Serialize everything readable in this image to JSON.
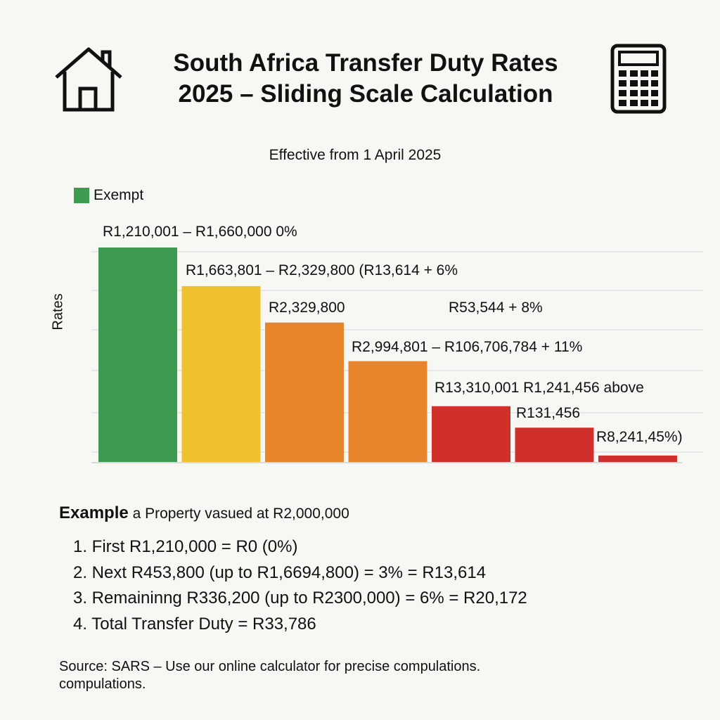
{
  "header": {
    "title_line1": "South Africa Transfer Duty Rates",
    "title_line2": "2025 – Sliding Scale Calculation",
    "subtitle": "Effective from 1 April 2025",
    "icons": [
      "house-icon",
      "calculator-icon"
    ]
  },
  "chart_data": {
    "type": "bar",
    "title": "South Africa Transfer Duty Rates 2025 – Sliding Scale Calculation",
    "subtitle": "Effective from 1 April 2025",
    "ylabel": "Rates",
    "xlabel": "",
    "legend": [
      {
        "label": "Exempt",
        "color": "#3d9a4e"
      }
    ],
    "legend_placement": "top-left",
    "grid": true,
    "ylim": [
      0,
      100
    ],
    "categories": [
      "R1,210,001 – R1,660,000 0%",
      "R1,663,801 – R2,329,800 (R13,614 + 6%",
      "R2,329,800",
      "R2,994,801 – R106,706,784 + 11%",
      "R13,310,001 R1,241,456 above",
      "R131,456",
      "R8,241,45%)"
    ],
    "annotations": [
      "R53,544 + 8%"
    ],
    "values": [
      100,
      82,
      65,
      47,
      26,
      16,
      3
    ],
    "colors": [
      "#3d9a4e",
      "#f0c030",
      "#e8852c",
      "#e8852c",
      "#d0302c",
      "#d0302c",
      "#d0302c"
    ]
  },
  "example": {
    "heading": "Example",
    "intro": "a Property vasued at R2,000,000",
    "steps": [
      "1. First R1,210,000 = R0 (0%)",
      "2. Next R453,800 (up to R1,6694,800) =  3% = R13,614",
      "3. Remaininng R336,200 (up to R2300,000) = 6% = R20,172",
      "4. Total Transfer Duty = R33,786"
    ]
  },
  "footer": {
    "source": "Source: SARS – Use our online calculator for precise compulations. compulations."
  }
}
